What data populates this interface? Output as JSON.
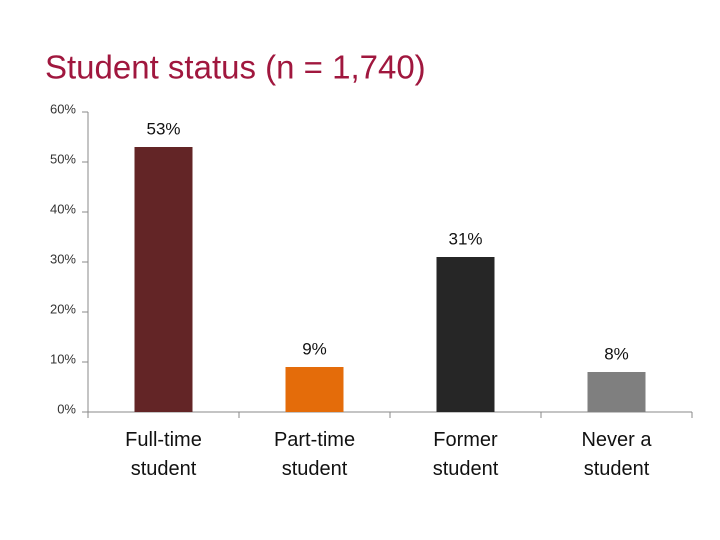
{
  "chart_data": {
    "type": "bar",
    "title": "Student status  (n = 1,740)",
    "categories": [
      "Full-time student",
      "Part-time student",
      "Former student",
      "Never a student"
    ],
    "values": [
      53,
      9,
      31,
      8
    ],
    "value_labels": [
      "53%",
      "9%",
      "31%",
      "8%"
    ],
    "colors": [
      "#632526",
      "#e46c0a",
      "#262626",
      "#7f7f7f"
    ],
    "ylim": [
      0,
      60
    ],
    "yticks": [
      {
        "value": 0,
        "label": "0%"
      },
      {
        "value": 10,
        "label": "10%"
      },
      {
        "value": 20,
        "label": "20%"
      },
      {
        "value": 30,
        "label": "30%"
      },
      {
        "value": 40,
        "label": "40%"
      },
      {
        "value": 50,
        "label": "50%"
      },
      {
        "value": 60,
        "label": "60%"
      }
    ],
    "grid": false
  }
}
